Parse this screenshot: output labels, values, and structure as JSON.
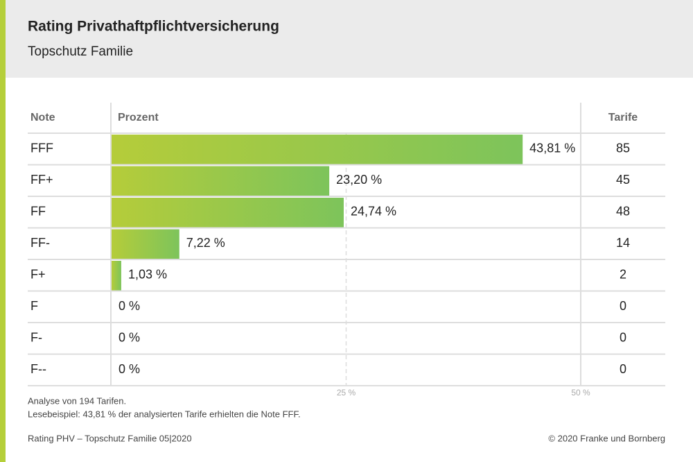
{
  "chart_data": {
    "type": "bar",
    "title": "Rating Privathaftpflichtversicherung",
    "subtitle": "Topschutz Familie",
    "headers": [
      "Note",
      "Prozent",
      "Tarife"
    ],
    "categories": [
      "FFF",
      "FF+",
      "FF",
      "FF-",
      "F+",
      "F",
      "F-",
      "F--"
    ],
    "values": [
      43.81,
      23.2,
      24.74,
      7.22,
      1.03,
      0,
      0,
      0
    ],
    "value_labels": [
      "43,81 %",
      "23,20 %",
      "24,74 %",
      "7,22 %",
      "1,03 %",
      "0 %",
      "0 %",
      "0 %"
    ],
    "tarife": [
      85,
      45,
      48,
      14,
      2,
      0,
      0,
      0
    ],
    "color": [
      "#b5cc3a",
      "#7dc45b"
    ],
    "xlim": [
      0,
      50
    ],
    "xticks": [
      {
        "value": 25,
        "label": "25 %"
      },
      {
        "value": 50,
        "label": "50 %"
      }
    ],
    "grid": true,
    "notes": [
      "Analyse von 194 Tarifen.",
      "Lesebeispiel: 43,81 % der analysierten Tarife erhielten die Note FFF."
    ],
    "footer_left": "Rating PHV – Topschutz Familie 05|2020",
    "footer_right": "© 2020 Franke und Bornberg"
  }
}
